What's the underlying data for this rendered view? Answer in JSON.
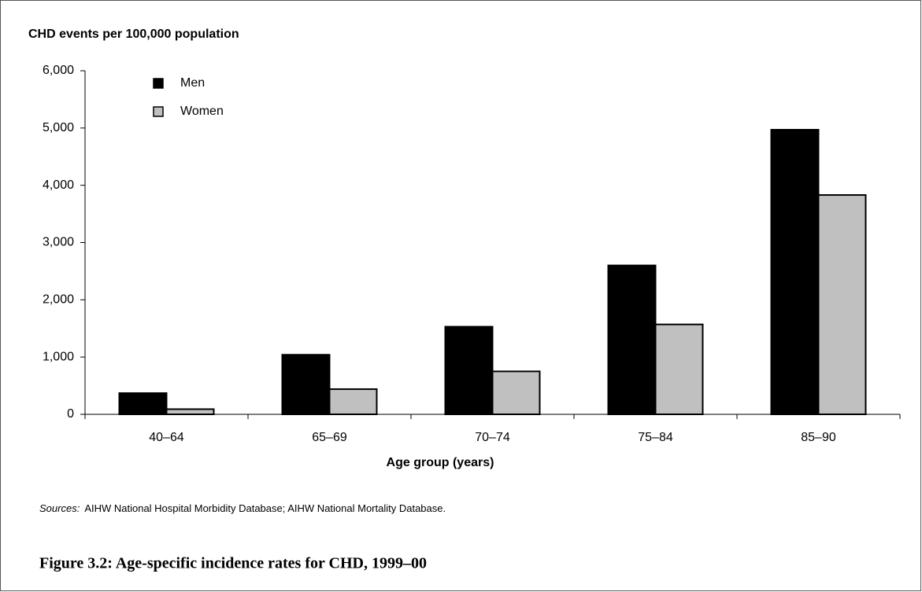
{
  "chart_data": {
    "type": "bar",
    "y_label": "CHD events per 100,000 population",
    "x_label": "Age group (years)",
    "categories": [
      "40–64",
      "65–69",
      "70–74",
      "75–84",
      "85–90"
    ],
    "series": [
      {
        "name": "Men",
        "color": "#000000",
        "values": [
          370,
          1040,
          1530,
          2600,
          4970
        ]
      },
      {
        "name": "Women",
        "color": "#c0c0c0",
        "values": [
          90,
          440,
          750,
          1570,
          3830
        ]
      }
    ],
    "ylim": [
      0,
      6000
    ],
    "yticks": [
      0,
      {
        "value": 1000,
        "label": "1,000"
      },
      {
        "value": 2000,
        "label": "2,000"
      },
      {
        "value": 3000,
        "label": "3,000"
      },
      {
        "value": 4000,
        "label": "4,000"
      },
      {
        "value": 5000,
        "label": "5,000"
      },
      {
        "value": 6000,
        "label": "6,000"
      }
    ],
    "legend": "top-left",
    "source_label": "Sources:",
    "source": "AIHW National Hospital Morbidity Database; AIHW National Mortality Database.",
    "caption": "Figure 3.2: Age-specific incidence rates for CHD, 1999–00"
  }
}
